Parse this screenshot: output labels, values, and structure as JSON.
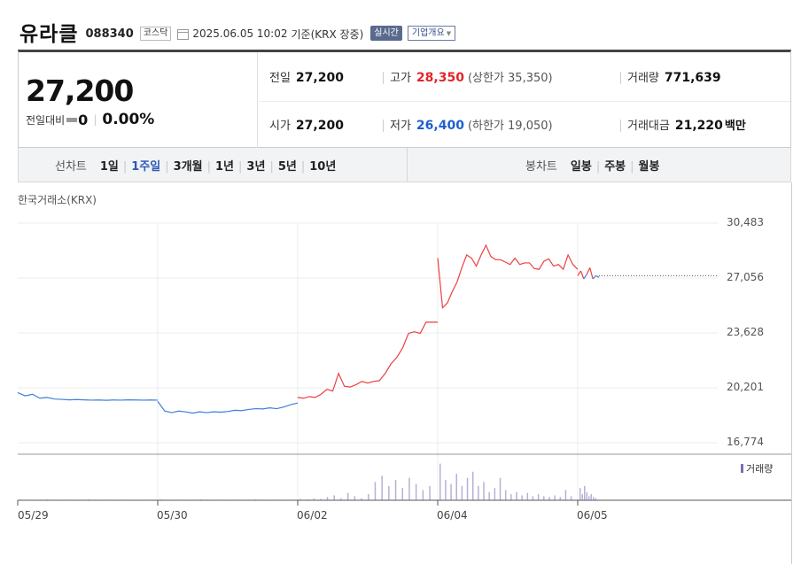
{
  "header": {
    "stock_name": "유라클",
    "stock_code": "088340",
    "market": "코스닥",
    "calendar_icon": "calendar-icon",
    "datetime": "2025.06.05 10:02",
    "basis": "기준(KRX 장중)",
    "realtime_label": "실시간",
    "company_label": "기업개요"
  },
  "quote": {
    "price": "27,200",
    "change_label": "전일대비",
    "change_value": "0",
    "change_pct": "0.00%",
    "prev_label": "전일",
    "prev_value": "27,200",
    "open_label": "시가",
    "open_value": "27,200",
    "high_label": "고가",
    "high_value": "28,350",
    "upper_limit": "(상한가 35,350)",
    "low_label": "저가",
    "low_value": "26,400",
    "lower_limit": "(하한가 19,050)",
    "volume_label": "거래량",
    "volume_value": "771,639",
    "amount_label": "거래대금",
    "amount_value": "21,220",
    "amount_unit": "백만"
  },
  "tabs": {
    "line_label": "선차트",
    "line_items": [
      "1일",
      "1주일",
      "3개월",
      "1년",
      "3년",
      "5년",
      "10년"
    ],
    "line_active": 1,
    "candle_label": "봉차트",
    "candle_items": [
      "일봉",
      "주봉",
      "월봉"
    ]
  },
  "chart_source": "한국거래소(KRX)",
  "volume_legend": "거래량",
  "colors": {
    "up": "#ef3e3e",
    "down": "#3f7fd9",
    "volume": "#7b6fb5",
    "accent": "#2d57b8"
  },
  "chart_data": {
    "type": "line",
    "title": "",
    "xlabel": "",
    "ylabel": "",
    "y_ticks": [
      "30,483",
      "27,056",
      "23,628",
      "20,201",
      "16,774"
    ],
    "ylim": [
      16774,
      30483
    ],
    "x_ticks": [
      "05/29",
      "05/30",
      "06/02",
      "06/04",
      "06/05"
    ],
    "prev_close_reference": 27200,
    "series": [
      {
        "segment": "05/29",
        "color": "down",
        "values": [
          19900,
          19700,
          19800,
          19550,
          19600,
          19500,
          19480,
          19450,
          19470,
          19450,
          19430,
          19440,
          19420,
          19440,
          19430,
          19450,
          19440,
          19430,
          19440,
          19430
        ]
      },
      {
        "segment": "05/30",
        "color": "down",
        "values": [
          19350,
          18750,
          18650,
          18750,
          18700,
          18620,
          18700,
          18650,
          18700,
          18680,
          18720,
          18800,
          18780,
          18850,
          18900,
          18880,
          18950,
          18900,
          19000,
          19150,
          19250
        ]
      },
      {
        "segment": "06/02",
        "color": "up",
        "values": [
          19600,
          19550,
          19650,
          19600,
          19800,
          20100,
          20000,
          21100,
          20300,
          20250,
          20400,
          20600,
          20500,
          20600,
          20650,
          21100,
          21700,
          22100,
          22700,
          23600,
          23700,
          23600,
          24300,
          24300,
          24300
        ]
      },
      {
        "segment": "06/04",
        "color": "up",
        "values": [
          28300,
          25200,
          25500,
          26200,
          26800,
          27700,
          28500,
          28300,
          27800,
          28500,
          29100,
          28400,
          28200,
          28200,
          28050,
          27900,
          28300,
          27900,
          28000,
          28000,
          27650,
          27600,
          28100,
          28250,
          27800,
          27900,
          27600,
          28500,
          27900,
          27600
        ]
      },
      {
        "segment": "06/05",
        "color": "mixed",
        "values": [
          27200,
          27500,
          27000,
          27300,
          27700,
          27000,
          27200,
          27100
        ]
      }
    ],
    "volume": [
      {
        "segment": "05/29",
        "values": [
          0.02,
          0.01,
          0.02,
          0.01,
          0.01,
          0.02,
          0.01,
          0.01,
          0.01,
          0.01
        ]
      },
      {
        "segment": "05/30",
        "values": [
          0.02,
          0.01,
          0.01,
          0.02,
          0.01,
          0.01,
          0.01,
          0.02,
          0.01,
          0.01
        ]
      },
      {
        "segment": "06/02",
        "values": [
          0.03,
          0.02,
          0.04,
          0.03,
          0.08,
          0.12,
          0.05,
          0.18,
          0.1,
          0.05,
          0.15,
          0.45,
          0.6,
          0.35,
          0.5,
          0.3,
          0.55,
          0.4,
          0.25,
          0.35
        ]
      },
      {
        "segment": "06/04",
        "values": [
          0.9,
          0.5,
          0.4,
          0.65,
          0.35,
          0.55,
          0.7,
          0.35,
          0.45,
          0.2,
          0.3,
          0.55,
          0.25,
          0.15,
          0.2,
          0.12,
          0.18,
          0.1,
          0.15,
          0.1,
          0.08,
          0.12,
          0.08,
          0.25,
          0.1
        ]
      },
      {
        "segment": "06/05",
        "values": [
          0.3,
          0.15,
          0.35,
          0.2,
          0.1,
          0.15,
          0.08,
          0.05
        ]
      }
    ]
  }
}
